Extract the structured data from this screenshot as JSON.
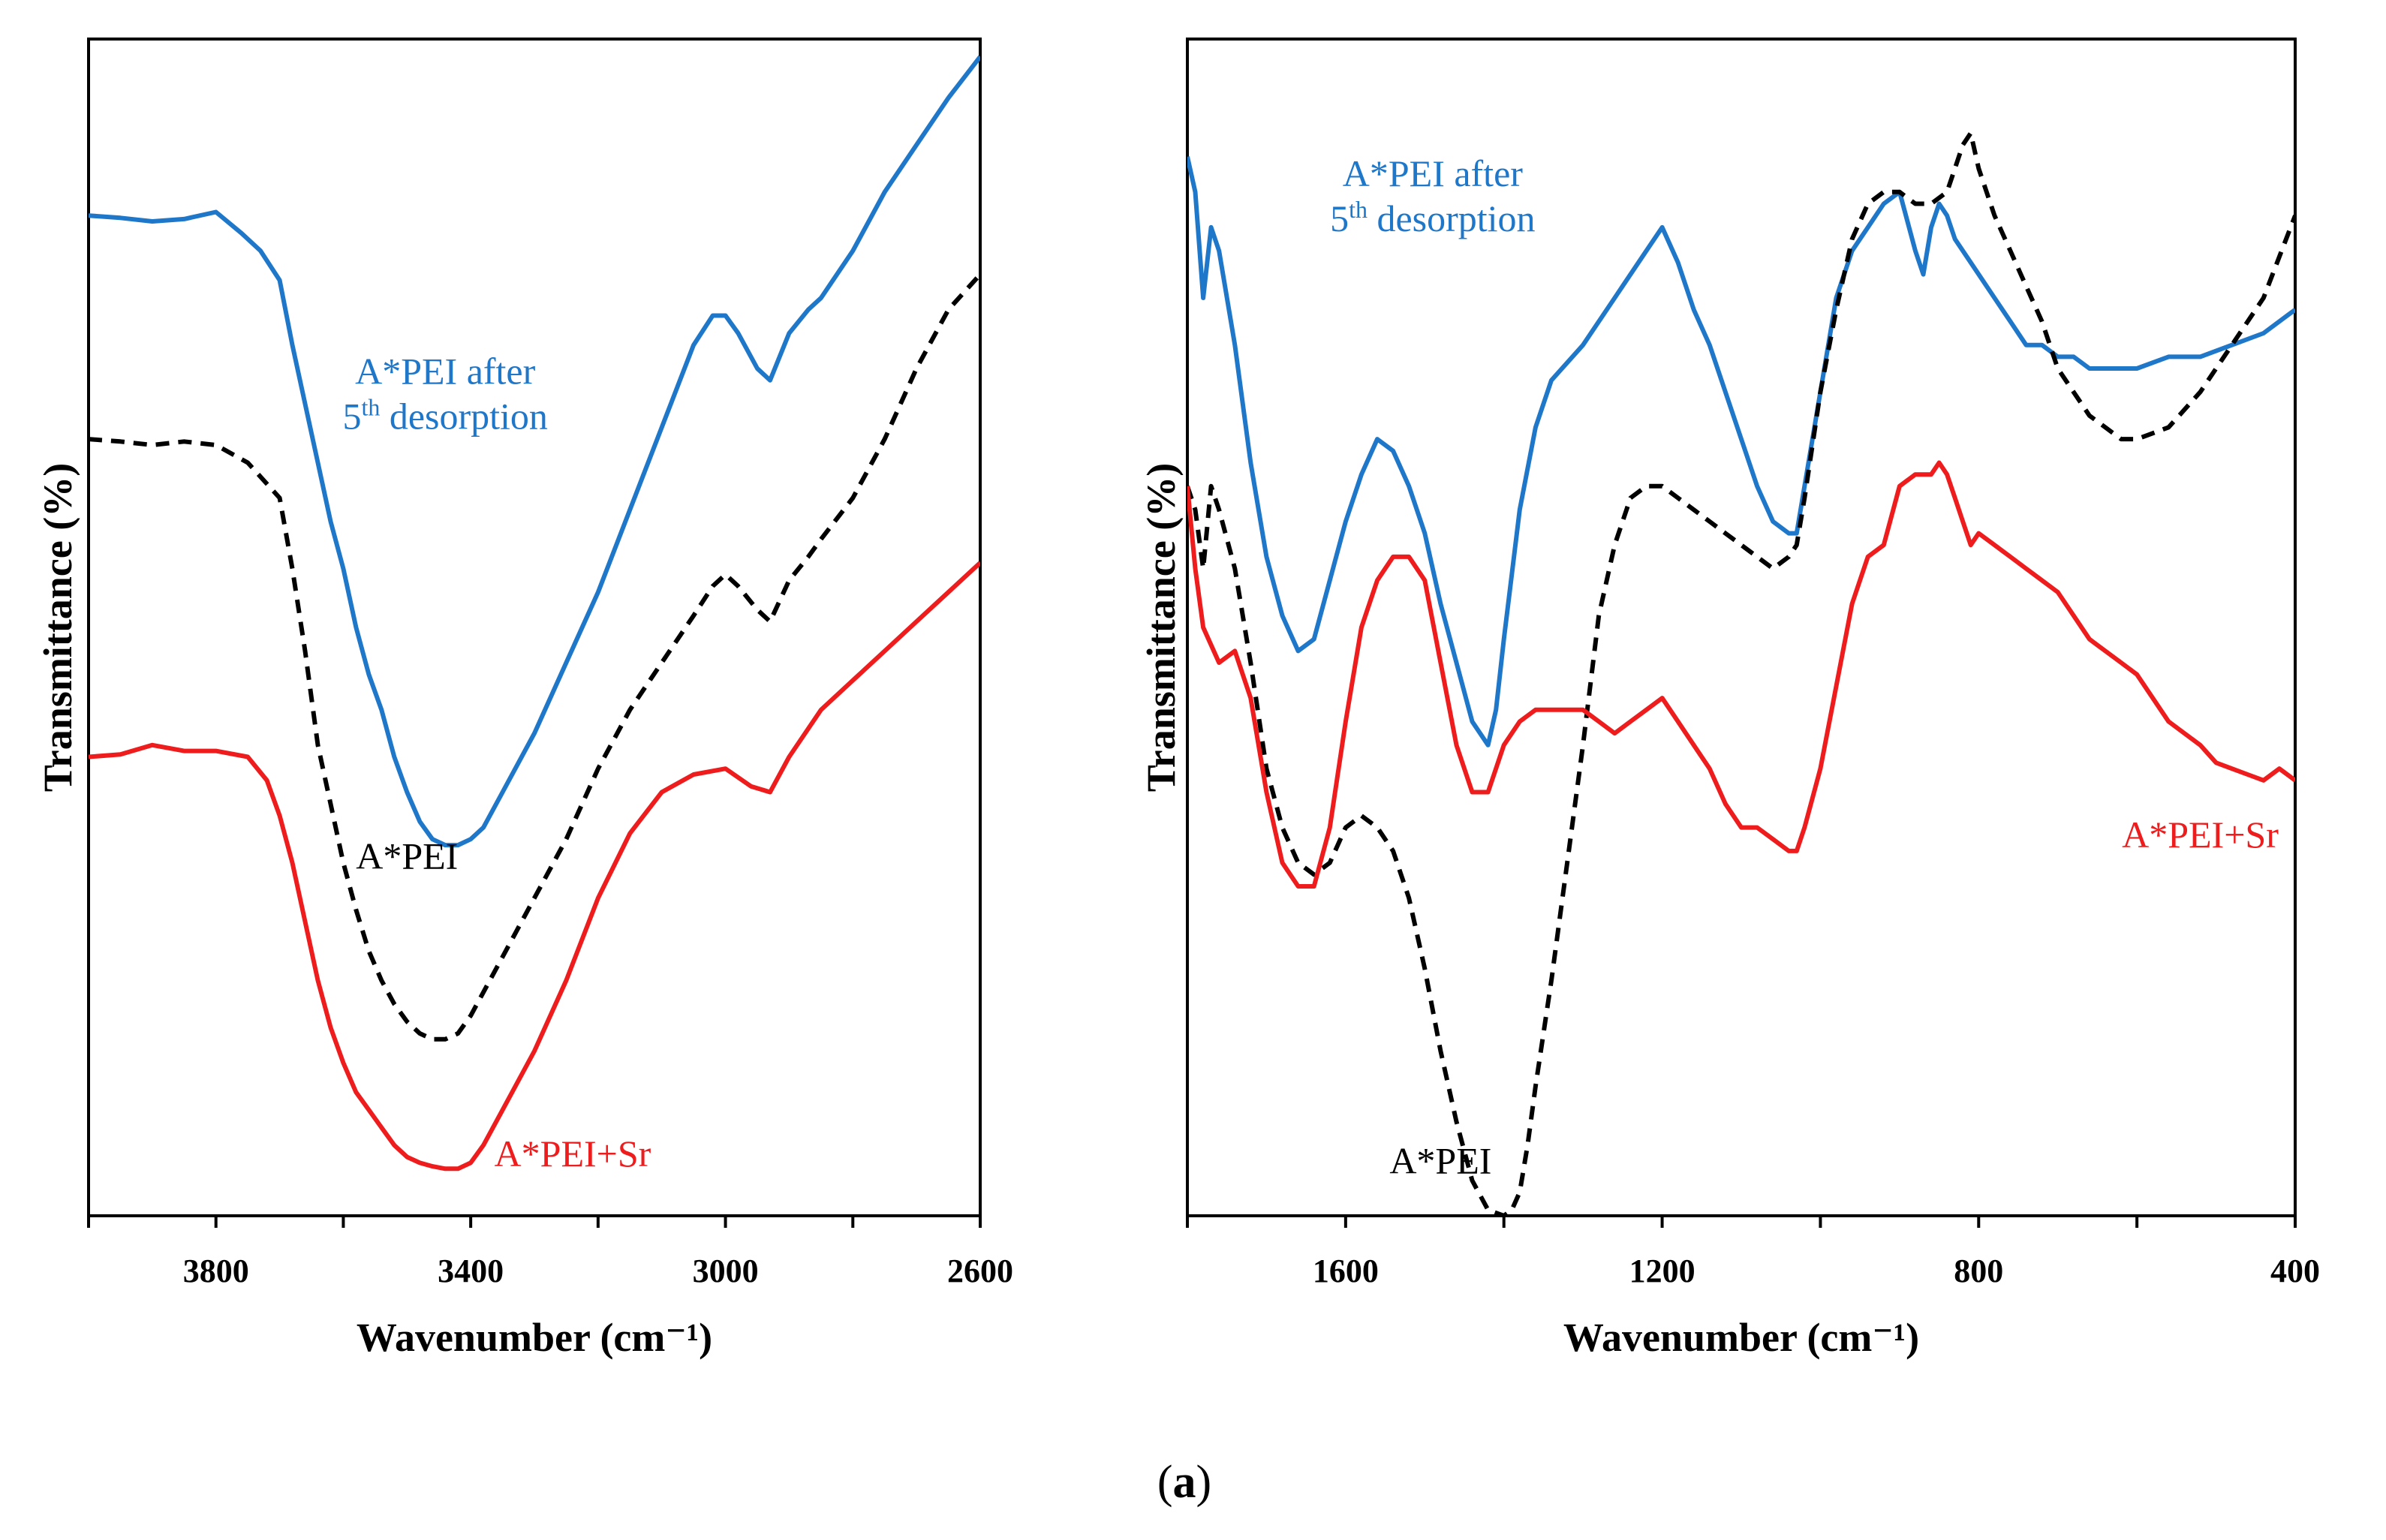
{
  "caption": {
    "open": "(",
    "bold": "a",
    "close": ")"
  },
  "chart_data": [
    {
      "type": "line",
      "title": "",
      "xlabel": "Wavenumber (cm⁻¹)",
      "ylabel": "Transmittance (%)",
      "xlim": [
        4000,
        2600
      ],
      "x_reversed": true,
      "ylim": [
        0,
        100
      ],
      "y_ticks_shown": false,
      "grid": false,
      "legend": "inline labels",
      "x_ticks": [
        3800,
        3400,
        3000,
        2600
      ],
      "x_tick_labels": [
        "3800",
        "3400",
        "3000",
        "2600"
      ],
      "series": [
        {
          "label_lines": [],
          "color": "#1f77c9",
          "dash": false,
          "x": [
            4000,
            3950,
            3900,
            3850,
            3800,
            3760,
            3730,
            3700,
            3680,
            3660,
            3640,
            3620,
            3600,
            3580,
            3560,
            3540,
            3520,
            3500,
            3480,
            3460,
            3440,
            3420,
            3400,
            3380,
            3350,
            3300,
            3250,
            3200,
            3150,
            3100,
            3050,
            3020,
            3000,
            2980,
            2950,
            2930,
            2900,
            2870,
            2850,
            2800,
            2750,
            2700,
            2650,
            2600
          ],
          "y": [
            85,
            84.8,
            84.5,
            84.7,
            85.3,
            83.5,
            82,
            79.5,
            74,
            69,
            64,
            59,
            55,
            50,
            46,
            43,
            39,
            36,
            33.5,
            32,
            31.5,
            31.5,
            32,
            33,
            36,
            41,
            47,
            53,
            60,
            67,
            74,
            76.5,
            76.5,
            75,
            72,
            71,
            75,
            77,
            78,
            82,
            87,
            91,
            95,
            98.5
          ]
        },
        {
          "label_lines": [
            "A*PEI after",
            "5<sup>th</sup> desorption"
          ],
          "label_at": [
            3440,
            70.7
          ],
          "color": "#1f77c9"
        },
        {
          "label_lines": [],
          "color": "#000000",
          "dash": true,
          "x": [
            4000,
            3950,
            3900,
            3850,
            3800,
            3750,
            3700,
            3680,
            3660,
            3640,
            3620,
            3600,
            3580,
            3560,
            3540,
            3520,
            3500,
            3480,
            3460,
            3440,
            3420,
            3400,
            3380,
            3350,
            3300,
            3250,
            3200,
            3150,
            3100,
            3050,
            3020,
            3000,
            2980,
            2950,
            2930,
            2900,
            2870,
            2850,
            2800,
            2750,
            2700,
            2650,
            2600
          ],
          "y": [
            66,
            65.8,
            65.5,
            65.8,
            65.5,
            64,
            61,
            55,
            48,
            40,
            35,
            30,
            26,
            22.5,
            20,
            18,
            16.5,
            15.5,
            15,
            15,
            15.5,
            17,
            19,
            22,
            27,
            32,
            38,
            43,
            47,
            51,
            53.5,
            54.5,
            53.5,
            51.5,
            50.5,
            54,
            56,
            57.5,
            61,
            66,
            72,
            77,
            80
          ]
        },
        {
          "label_lines": [
            "A*PEI"
          ],
          "label_at": [
            3500,
            29.5
          ],
          "color": "#000000"
        },
        {
          "label_lines": [],
          "color": "#ee1c1c",
          "dash": false,
          "x": [
            4000,
            3950,
            3900,
            3850,
            3800,
            3750,
            3720,
            3700,
            3680,
            3660,
            3640,
            3620,
            3600,
            3580,
            3560,
            3540,
            3520,
            3500,
            3480,
            3460,
            3440,
            3420,
            3400,
            3380,
            3350,
            3300,
            3250,
            3200,
            3150,
            3100,
            3050,
            3000,
            2960,
            2930,
            2900,
            2850,
            2800,
            2750,
            2700,
            2650,
            2600
          ],
          "y": [
            39,
            39.2,
            40,
            39.5,
            39.5,
            39,
            37,
            34,
            30,
            25,
            20,
            16,
            13,
            10.5,
            9,
            7.5,
            6,
            5,
            4.5,
            4.2,
            4,
            4,
            4.5,
            6,
            9,
            14,
            20,
            27,
            32.5,
            36,
            37.5,
            38,
            36.5,
            36,
            39,
            43,
            45.5,
            48,
            50.5,
            53,
            55.5
          ]
        },
        {
          "label_lines": [
            "A*PEI+Sr"
          ],
          "label_at": [
            3240,
            4.2
          ],
          "color": "#ee1c1c"
        }
      ]
    },
    {
      "type": "line",
      "title": "",
      "xlabel": "Wavenumber (cm⁻¹)",
      "ylabel": "Transmittance (%)",
      "xlim": [
        1800,
        400
      ],
      "x_reversed": true,
      "ylim": [
        0,
        100
      ],
      "y_ticks_shown": false,
      "grid": false,
      "legend": "inline labels",
      "x_ticks": [
        1600,
        1200,
        800,
        400
      ],
      "x_tick_labels": [
        "1600",
        "1200",
        "800",
        "400"
      ],
      "series": [
        {
          "label_lines": [],
          "color": "#1f77c9",
          "dash": false,
          "x": [
            1800,
            1790,
            1780,
            1770,
            1760,
            1740,
            1720,
            1700,
            1680,
            1660,
            1640,
            1620,
            1600,
            1580,
            1560,
            1540,
            1520,
            1500,
            1480,
            1460,
            1440,
            1420,
            1410,
            1400,
            1380,
            1360,
            1340,
            1300,
            1260,
            1220,
            1200,
            1180,
            1160,
            1140,
            1120,
            1100,
            1080,
            1060,
            1040,
            1030,
            1020,
            1000,
            980,
            960,
            940,
            920,
            900,
            880,
            870,
            860,
            850,
            840,
            830,
            800,
            780,
            760,
            740,
            720,
            700,
            680,
            660,
            640,
            620,
            600,
            560,
            520,
            480,
            440,
            400
          ],
          "y": [
            90,
            87,
            78,
            84,
            82,
            74,
            64,
            56,
            51,
            48,
            49,
            54,
            59,
            63,
            66,
            65,
            62,
            58,
            52,
            47,
            42,
            40,
            43,
            49,
            60,
            67,
            71,
            74,
            78,
            82,
            84,
            81,
            77,
            74,
            70,
            66,
            62,
            59,
            58,
            58,
            62,
            70,
            78,
            82,
            84,
            86,
            87,
            82,
            80,
            84,
            86,
            85,
            83,
            80,
            78,
            76,
            74,
            74,
            73,
            73,
            72,
            72,
            72,
            72,
            73,
            73,
            74,
            75,
            77
          ]
        },
        {
          "label_lines": [
            "A*PEI after",
            "5<sup>th</sup> desorption"
          ],
          "label_at": [
            1490,
            87.5
          ],
          "color": "#1f77c9"
        },
        {
          "label_lines": [],
          "color": "#000000",
          "dash": true,
          "x": [
            1800,
            1790,
            1780,
            1770,
            1760,
            1740,
            1720,
            1700,
            1680,
            1660,
            1640,
            1620,
            1600,
            1580,
            1560,
            1540,
            1520,
            1500,
            1480,
            1460,
            1440,
            1420,
            1400,
            1390,
            1380,
            1370,
            1360,
            1340,
            1320,
            1300,
            1280,
            1260,
            1240,
            1220,
            1200,
            1180,
            1160,
            1140,
            1120,
            1100,
            1080,
            1060,
            1040,
            1030,
            1020,
            1000,
            980,
            960,
            940,
            920,
            900,
            880,
            860,
            840,
            820,
            810,
            800,
            780,
            760,
            740,
            720,
            700,
            680,
            660,
            640,
            620,
            600,
            560,
            520,
            480,
            440,
            400
          ],
          "y": [
            62,
            60,
            55,
            62,
            60,
            55,
            47,
            38,
            33,
            30,
            29,
            30,
            33,
            34,
            33,
            31,
            27,
            21,
            14,
            8,
            3,
            0.5,
            0,
            0.5,
            2,
            6,
            11,
            20,
            30,
            40,
            51,
            57,
            61,
            62,
            62,
            61,
            60,
            59,
            58,
            57,
            56,
            55,
            56,
            57,
            61,
            70,
            77,
            83,
            86,
            87,
            87,
            86,
            86,
            87,
            91,
            92,
            89,
            85,
            82,
            79,
            76,
            72,
            70,
            68,
            67,
            66,
            66,
            67,
            70,
            74,
            78,
            85
          ]
        },
        {
          "label_lines": [
            "A*PEI"
          ],
          "label_at": [
            1480,
            3.6
          ],
          "color": "#000000"
        },
        {
          "label_lines": [],
          "color": "#ee1c1c",
          "dash": false,
          "x": [
            1800,
            1790,
            1780,
            1760,
            1740,
            1720,
            1700,
            1680,
            1660,
            1640,
            1620,
            1600,
            1580,
            1560,
            1540,
            1520,
            1500,
            1480,
            1460,
            1440,
            1420,
            1400,
            1380,
            1360,
            1340,
            1320,
            1300,
            1280,
            1260,
            1240,
            1220,
            1200,
            1180,
            1160,
            1140,
            1120,
            1100,
            1080,
            1060,
            1040,
            1030,
            1020,
            1000,
            980,
            960,
            940,
            920,
            900,
            880,
            860,
            850,
            840,
            830,
            820,
            810,
            800,
            780,
            760,
            740,
            720,
            700,
            680,
            660,
            640,
            620,
            600,
            580,
            560,
            540,
            520,
            500,
            480,
            460,
            440,
            420,
            400
          ],
          "y": [
            62,
            55,
            50,
            47,
            48,
            44,
            36,
            30,
            28,
            28,
            33,
            42,
            50,
            54,
            56,
            56,
            54,
            47,
            40,
            36,
            36,
            40,
            42,
            43,
            43,
            43,
            43,
            42,
            41,
            42,
            43,
            44,
            42,
            40,
            38,
            35,
            33,
            33,
            32,
            31,
            31,
            33,
            38,
            45,
            52,
            56,
            57,
            62,
            63,
            63,
            64,
            63,
            61,
            59,
            57,
            58,
            57,
            56,
            55,
            54,
            53,
            51,
            49,
            48,
            47,
            46,
            44,
            42,
            41,
            40,
            38.5,
            38,
            37.5,
            37,
            38,
            37
          ]
        },
        {
          "label_lines": [
            "A*PEI+Sr"
          ],
          "label_at": [
            520,
            31.3
          ],
          "color": "#ee1c1c"
        }
      ]
    }
  ]
}
